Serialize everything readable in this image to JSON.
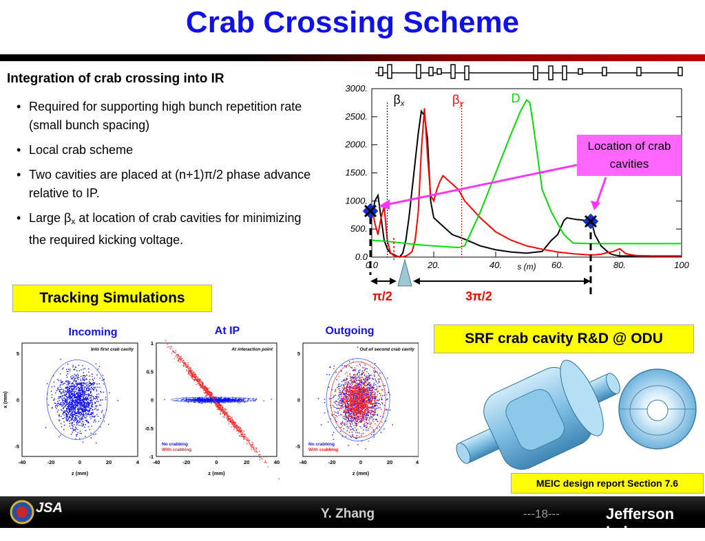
{
  "slide": {
    "title": "Crab Crossing Scheme",
    "subtitle": "Integration of crab crossing into IR",
    "bullets": [
      "Required for supporting high bunch repetition rate (small bunch spacing)",
      "Local crab scheme",
      "Two cavities are placed at (n+1)π/2 phase advance relative to IP."
    ],
    "bullet4": {
      "pre": "Large β",
      "sub": "x",
      "post": " at location of crab cavities for minimizing the required kicking voltage."
    },
    "tracking_label": "Tracking Simulations",
    "srf_label": "SRF crab cavity R&D @ ODU",
    "meic_label": "MEIC design report Section 7.6",
    "location_callout": "Location of crab cavities",
    "phase_label_1": "π/2",
    "phase_label_2": "3π/2",
    "footer": {
      "author": "Y. Zhang",
      "page": "---18---",
      "logo_right": "Jefferson Lab",
      "logo_left": "JSA"
    }
  },
  "optics_chart": {
    "chart_data": {
      "type": "line",
      "xlabel": "s (m)",
      "x_ticks": [
        "0.0",
        "20.",
        "40.",
        "60.",
        "80.",
        "100"
      ],
      "y_ticks": [
        "0.0",
        "500.",
        "1000.",
        "1500.",
        "2000.",
        "2500.",
        "3000."
      ],
      "xlim": [
        0,
        100
      ],
      "ylim": [
        0,
        3000
      ],
      "series": [
        {
          "name": "βx",
          "color": "#000000",
          "x": [
            0,
            1,
            2,
            3,
            4,
            5,
            6,
            7,
            8,
            9,
            10,
            11,
            12,
            13,
            14,
            15,
            16,
            17,
            18,
            19,
            20,
            21,
            22,
            23,
            24,
            25,
            26,
            27,
            28,
            30,
            35,
            40,
            45,
            50,
            55,
            58,
            60,
            62,
            63,
            64,
            66,
            68,
            70,
            71,
            72,
            73,
            74,
            75,
            76,
            77,
            78,
            80,
            85,
            90,
            95,
            100
          ],
          "y": [
            700,
            1000,
            1100,
            700,
            300,
            150,
            70,
            50,
            20,
            2,
            70,
            300,
            700,
            1200,
            1700,
            2200,
            2600,
            2520,
            2100,
            1000,
            700,
            650,
            600,
            550,
            500,
            450,
            400,
            380,
            360,
            320,
            200,
            130,
            90,
            70,
            100,
            300,
            400,
            650,
            700,
            690,
            670,
            660,
            640,
            620,
            400,
            300,
            200,
            150,
            100,
            60,
            40,
            20,
            20,
            20,
            20,
            20
          ]
        },
        {
          "name": "βy",
          "color": "#ff0000",
          "x": [
            0,
            1,
            2,
            3,
            4,
            5,
            6,
            7,
            8,
            9,
            10,
            11,
            12,
            13,
            14,
            15,
            16,
            17,
            18,
            19,
            20,
            21,
            22,
            23,
            24,
            25,
            26,
            28,
            30,
            35,
            40,
            45,
            50,
            55,
            60,
            65,
            70,
            72,
            74,
            76,
            78,
            80,
            82,
            85,
            90,
            95,
            100
          ],
          "y": [
            900,
            600,
            400,
            700,
            900,
            300,
            80,
            30,
            10,
            2,
            5,
            20,
            50,
            100,
            300,
            800,
            1900,
            2650,
            1800,
            1100,
            1000,
            1200,
            1350,
            1450,
            1400,
            1350,
            1300,
            1200,
            1000,
            700,
            450,
            300,
            200,
            140,
            90,
            60,
            40,
            40,
            50,
            80,
            100,
            150,
            60,
            30,
            20,
            20,
            20
          ]
        },
        {
          "name": "D",
          "color": "#00e000",
          "x": [
            0,
            5,
            10,
            15,
            20,
            25,
            28,
            30,
            35,
            40,
            45,
            48,
            50,
            51,
            52,
            55,
            58,
            60,
            62,
            65,
            70,
            75,
            80,
            85,
            90,
            95,
            100
          ],
          "y": [
            300,
            280,
            250,
            220,
            200,
            180,
            170,
            200,
            800,
            1500,
            2200,
            2600,
            2800,
            2750,
            2400,
            1200,
            800,
            600,
            400,
            250,
            240,
            240,
            240,
            240,
            240,
            240,
            240
          ]
        }
      ]
    }
  },
  "sim_panels": [
    {
      "title": "Incoming",
      "inner_title": "Into first crab cavity",
      "y_axis": "x (mm)",
      "x_axis": "z (mm)",
      "x_ticks": [
        "-40",
        "-20",
        "0",
        "20",
        "4"
      ],
      "y_ticks": [
        "5",
        "0",
        "-5"
      ]
    },
    {
      "title": "At IP",
      "inner_title": "At interaction point",
      "x_axis": "z (mm)",
      "x_ticks": [
        "-40",
        "-20",
        "0",
        "20",
        "40"
      ],
      "y_ticks": [
        "1",
        "0.5",
        "0",
        "-0.5",
        "-1"
      ],
      "legend": [
        "No crabbing",
        "With crabbing"
      ]
    },
    {
      "title": "Outgoing",
      "inner_title": "Out of second crab cavity",
      "x_axis": "z (mm)",
      "x_ticks": [
        "-40",
        "-20",
        "0",
        "20",
        "40"
      ],
      "y_ticks": [
        "5",
        "0",
        "-5"
      ],
      "legend": [
        "No crabbing",
        "With crabbing"
      ]
    }
  ]
}
